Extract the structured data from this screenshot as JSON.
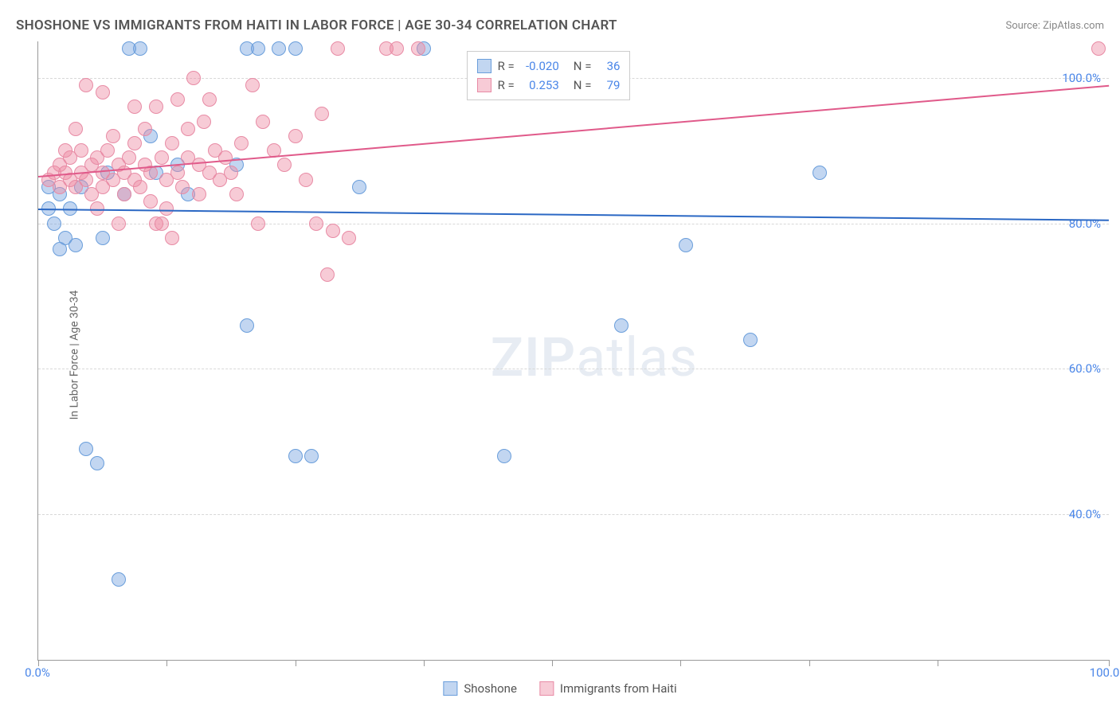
{
  "title": "SHOSHONE VS IMMIGRANTS FROM HAITI IN LABOR FORCE | AGE 30-34 CORRELATION CHART",
  "source": "Source: ZipAtlas.com",
  "y_axis_label": "In Labor Force | Age 30-34",
  "watermark_bold": "ZIP",
  "watermark_rest": "atlas",
  "chart": {
    "type": "scatter",
    "background_color": "#ffffff",
    "grid_color": "#d8d8d8",
    "axis_color": "#999999",
    "xlim": [
      0,
      100
    ],
    "ylim": [
      20,
      105
    ],
    "x_ticks": [
      0,
      12,
      24,
      36,
      48,
      60,
      72,
      84,
      100
    ],
    "x_tick_labels": {
      "0": "0.0%",
      "100": "100.0%"
    },
    "y_gridlines": [
      40,
      60,
      80,
      100
    ],
    "y_tick_labels": {
      "40": "40.0%",
      "60": "60.0%",
      "80": "80.0%",
      "100": "100.0%"
    },
    "label_color": "#4a86e8",
    "label_fontsize": 15,
    "point_radius": 9,
    "point_opacity": 0.55,
    "series": [
      {
        "name": "Shoshone",
        "color_fill": "rgba(120,165,225,0.45)",
        "color_stroke": "#6a9edb",
        "R": "-0.020",
        "N": "36",
        "trend": {
          "y_at_x0": 82.0,
          "y_at_x100": 80.5,
          "color": "#2b68c4",
          "width": 2
        },
        "points": [
          [
            9.5,
            104
          ],
          [
            1.0,
            82
          ],
          [
            1.5,
            80
          ],
          [
            2.5,
            78
          ],
          [
            2.0,
            76.5
          ],
          [
            3.5,
            77
          ],
          [
            4.5,
            49
          ],
          [
            5.5,
            47
          ],
          [
            6.0,
            78
          ],
          [
            7.5,
            31
          ],
          [
            10.5,
            92
          ],
          [
            11.0,
            87
          ],
          [
            13.0,
            88
          ],
          [
            8.5,
            104
          ],
          [
            19.5,
            104
          ],
          [
            20.5,
            104
          ],
          [
            22.5,
            104
          ],
          [
            24.0,
            104
          ],
          [
            18.5,
            88
          ],
          [
            19.5,
            66
          ],
          [
            24.0,
            48
          ],
          [
            25.5,
            48
          ],
          [
            36.0,
            104
          ],
          [
            43.5,
            48
          ],
          [
            54.5,
            66
          ],
          [
            60.5,
            77
          ],
          [
            66.5,
            64
          ],
          [
            73.0,
            87
          ],
          [
            30.0,
            85
          ],
          [
            4.0,
            85
          ],
          [
            6.5,
            87
          ],
          [
            8.0,
            84
          ],
          [
            14.0,
            84
          ],
          [
            2.0,
            84
          ],
          [
            1.0,
            85
          ],
          [
            3.0,
            82
          ]
        ]
      },
      {
        "name": "Immigants from Haiti",
        "legend_label": "Immigrants from Haiti",
        "color_fill": "rgba(238,140,165,0.45)",
        "color_stroke": "#e88ba5",
        "R": "0.253",
        "N": "79",
        "trend": {
          "y_at_x0": 86.5,
          "y_at_x100": 99.0,
          "color": "#e05a8a",
          "width": 2
        },
        "points": [
          [
            1.0,
            86
          ],
          [
            1.5,
            87
          ],
          [
            2.0,
            88
          ],
          [
            2.0,
            85
          ],
          [
            2.5,
            87
          ],
          [
            3.0,
            86
          ],
          [
            3.0,
            89
          ],
          [
            3.5,
            85
          ],
          [
            4.0,
            87
          ],
          [
            4.0,
            90
          ],
          [
            4.5,
            86
          ],
          [
            5.0,
            88
          ],
          [
            5.0,
            84
          ],
          [
            5.5,
            89
          ],
          [
            6.0,
            87
          ],
          [
            6.0,
            85
          ],
          [
            6.5,
            90
          ],
          [
            7.0,
            86
          ],
          [
            7.0,
            92
          ],
          [
            7.5,
            88
          ],
          [
            8.0,
            87
          ],
          [
            8.0,
            84
          ],
          [
            8.5,
            89
          ],
          [
            9.0,
            86
          ],
          [
            9.0,
            91
          ],
          [
            9.5,
            85
          ],
          [
            10.0,
            88
          ],
          [
            10.0,
            93
          ],
          [
            10.5,
            87
          ],
          [
            11.0,
            80
          ],
          [
            11.0,
            96
          ],
          [
            11.5,
            89
          ],
          [
            12.0,
            86
          ],
          [
            12.0,
            82
          ],
          [
            12.5,
            91
          ],
          [
            13.0,
            87
          ],
          [
            13.0,
            97
          ],
          [
            13.5,
            85
          ],
          [
            14.0,
            89
          ],
          [
            14.0,
            93
          ],
          [
            14.5,
            100
          ],
          [
            15.0,
            88
          ],
          [
            15.5,
            94
          ],
          [
            16.0,
            87
          ],
          [
            16.5,
            90
          ],
          [
            17.0,
            86
          ],
          [
            17.5,
            89
          ],
          [
            18.0,
            87
          ],
          [
            19.0,
            91
          ],
          [
            20.0,
            99
          ],
          [
            20.5,
            80
          ],
          [
            21.0,
            94
          ],
          [
            22.0,
            90
          ],
          [
            23.0,
            88
          ],
          [
            24.0,
            92
          ],
          [
            25.0,
            86
          ],
          [
            26.0,
            80
          ],
          [
            26.5,
            95
          ],
          [
            27.5,
            79
          ],
          [
            28.0,
            104
          ],
          [
            27.0,
            73
          ],
          [
            29.0,
            78
          ],
          [
            32.5,
            104
          ],
          [
            33.5,
            104
          ],
          [
            35.5,
            104
          ],
          [
            99.0,
            104
          ],
          [
            4.5,
            99
          ],
          [
            6.0,
            98
          ],
          [
            9.0,
            96
          ],
          [
            10.5,
            83
          ],
          [
            11.5,
            80
          ],
          [
            12.5,
            78
          ],
          [
            15.0,
            84
          ],
          [
            16.0,
            97
          ],
          [
            18.5,
            84
          ],
          [
            3.5,
            93
          ],
          [
            5.5,
            82
          ],
          [
            7.5,
            80
          ],
          [
            2.5,
            90
          ]
        ]
      }
    ],
    "stats_box": {
      "top_pct": 1.5,
      "left_pct": 40,
      "rows": [
        {
          "swatch_fill": "rgba(120,165,225,0.45)",
          "swatch_stroke": "#6a9edb",
          "R": "-0.020",
          "N": "36"
        },
        {
          "swatch_fill": "rgba(238,140,165,0.45)",
          "swatch_stroke": "#e88ba5",
          "R": "0.253",
          "N": "79"
        }
      ]
    },
    "legend": [
      {
        "swatch_fill": "rgba(120,165,225,0.45)",
        "swatch_stroke": "#6a9edb",
        "label": "Shoshone"
      },
      {
        "swatch_fill": "rgba(238,140,165,0.45)",
        "swatch_stroke": "#e88ba5",
        "label": "Immigrants from Haiti"
      }
    ]
  }
}
